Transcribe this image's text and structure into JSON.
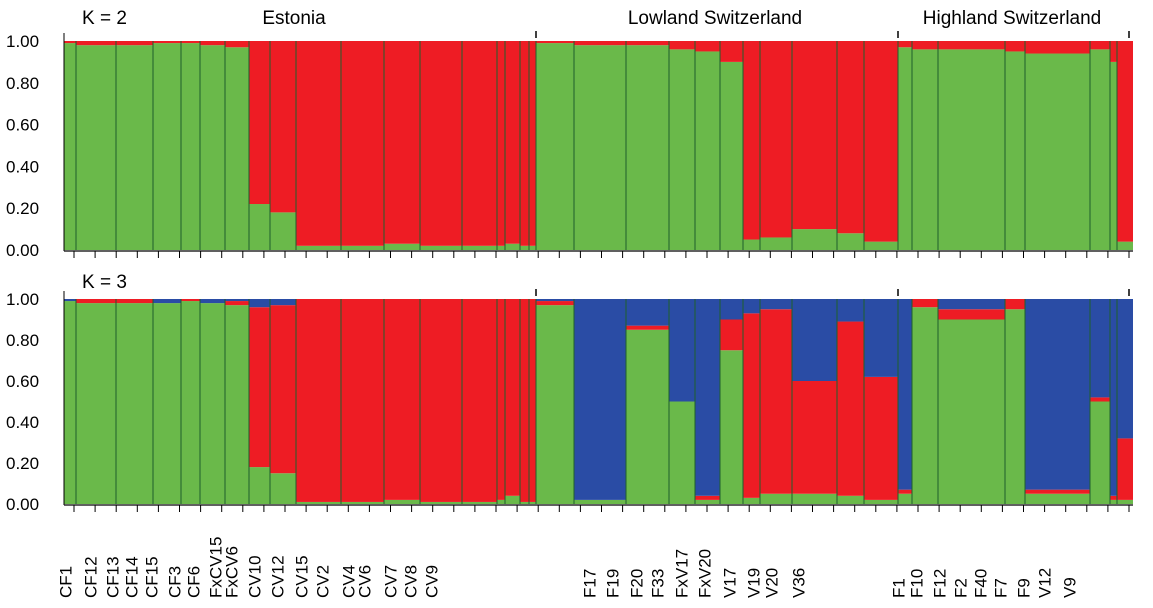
{
  "chart_data": {
    "type": "bar",
    "stacked": true,
    "description_axes": {
      "ylim": [
        0,
        1
      ],
      "yticks": [
        "0.00",
        "0.20",
        "0.40",
        "0.60",
        "0.80",
        "1.00"
      ]
    },
    "group_labels": [
      "Estonia",
      "Lowland Switzerland",
      "Highland Switzerland"
    ],
    "colors": {
      "green": "#6ab94a",
      "red": "#ee1c24",
      "blue": "#2a4ca5"
    },
    "populations": [
      "CF1",
      "CF12",
      "CF13",
      "CF14",
      "CF15",
      "CF3",
      "CF6",
      "FxCV15",
      "FxCV6",
      "CV10",
      "CV12",
      "CV15",
      "CV2",
      "CV4",
      "CV6",
      "CV7",
      "CV8",
      "CV9",
      "F17",
      "F19",
      "F20",
      "F33",
      "FxV17",
      "FxV20",
      "V17",
      "V19",
      "V20",
      "V36",
      "F1",
      "F10",
      "F12",
      "F2",
      "F40",
      "F7",
      "F9",
      "V12",
      "V9"
    ],
    "panels": [
      {
        "label": "K = 2",
        "series": [
          {
            "color": "green",
            "values": [
              0.99,
              0.98,
              0.98,
              0.99,
              0.99,
              0.98,
              0.97,
              0.22,
              0.18,
              0.02,
              0.02,
              0.03,
              0.02,
              0.02,
              0.02,
              0.03,
              0.02,
              0.02,
              0.99,
              0.98,
              0.98,
              0.96,
              0.95,
              0.9,
              0.05,
              0.06,
              0.1,
              0.08,
              0.04,
              0.97,
              0.96,
              0.96,
              0.95,
              0.94,
              0.96,
              0.9,
              0.04
            ]
          },
          {
            "color": "red",
            "values": [
              0.01,
              0.02,
              0.02,
              0.01,
              0.01,
              0.02,
              0.03,
              0.78,
              0.82,
              0.98,
              0.98,
              0.97,
              0.98,
              0.98,
              0.98,
              0.97,
              0.98,
              0.98,
              0.01,
              0.02,
              0.02,
              0.04,
              0.05,
              0.1,
              0.95,
              0.94,
              0.9,
              0.92,
              0.96,
              0.03,
              0.04,
              0.04,
              0.05,
              0.06,
              0.04,
              0.1,
              0.96
            ]
          }
        ]
      },
      {
        "label": "K = 3",
        "series": [
          {
            "color": "green",
            "values": [
              0.99,
              0.98,
              0.98,
              0.98,
              0.99,
              0.98,
              0.97,
              0.18,
              0.15,
              0.01,
              0.01,
              0.02,
              0.01,
              0.01,
              0.02,
              0.04,
              0.01,
              0.01,
              0.97,
              0.02,
              0.85,
              0.5,
              0.02,
              0.75,
              0.03,
              0.05,
              0.05,
              0.04,
              0.02,
              0.05,
              0.96,
              0.9,
              0.95,
              0.05,
              0.5,
              0.02,
              0.02
            ]
          },
          {
            "color": "red",
            "values": [
              0.0,
              0.02,
              0.02,
              0.0,
              0.01,
              0.0,
              0.02,
              0.78,
              0.82,
              0.99,
              0.99,
              0.98,
              0.99,
              0.99,
              0.98,
              0.96,
              0.99,
              0.99,
              0.02,
              0.0,
              0.02,
              0.0,
              0.02,
              0.15,
              0.9,
              0.9,
              0.55,
              0.85,
              0.6,
              0.02,
              0.04,
              0.05,
              0.05,
              0.02,
              0.02,
              0.02,
              0.3
            ]
          },
          {
            "color": "blue",
            "values": [
              0.01,
              0.0,
              0.0,
              0.02,
              0.0,
              0.02,
              0.01,
              0.04,
              0.03,
              0.0,
              0.0,
              0.0,
              0.0,
              0.0,
              0.0,
              0.0,
              0.0,
              0.0,
              0.01,
              0.98,
              0.13,
              0.5,
              0.96,
              0.1,
              0.07,
              0.05,
              0.4,
              0.11,
              0.38,
              0.93,
              0.0,
              0.05,
              0.0,
              0.93,
              0.48,
              0.96,
              0.68
            ]
          }
        ]
      }
    ]
  }
}
